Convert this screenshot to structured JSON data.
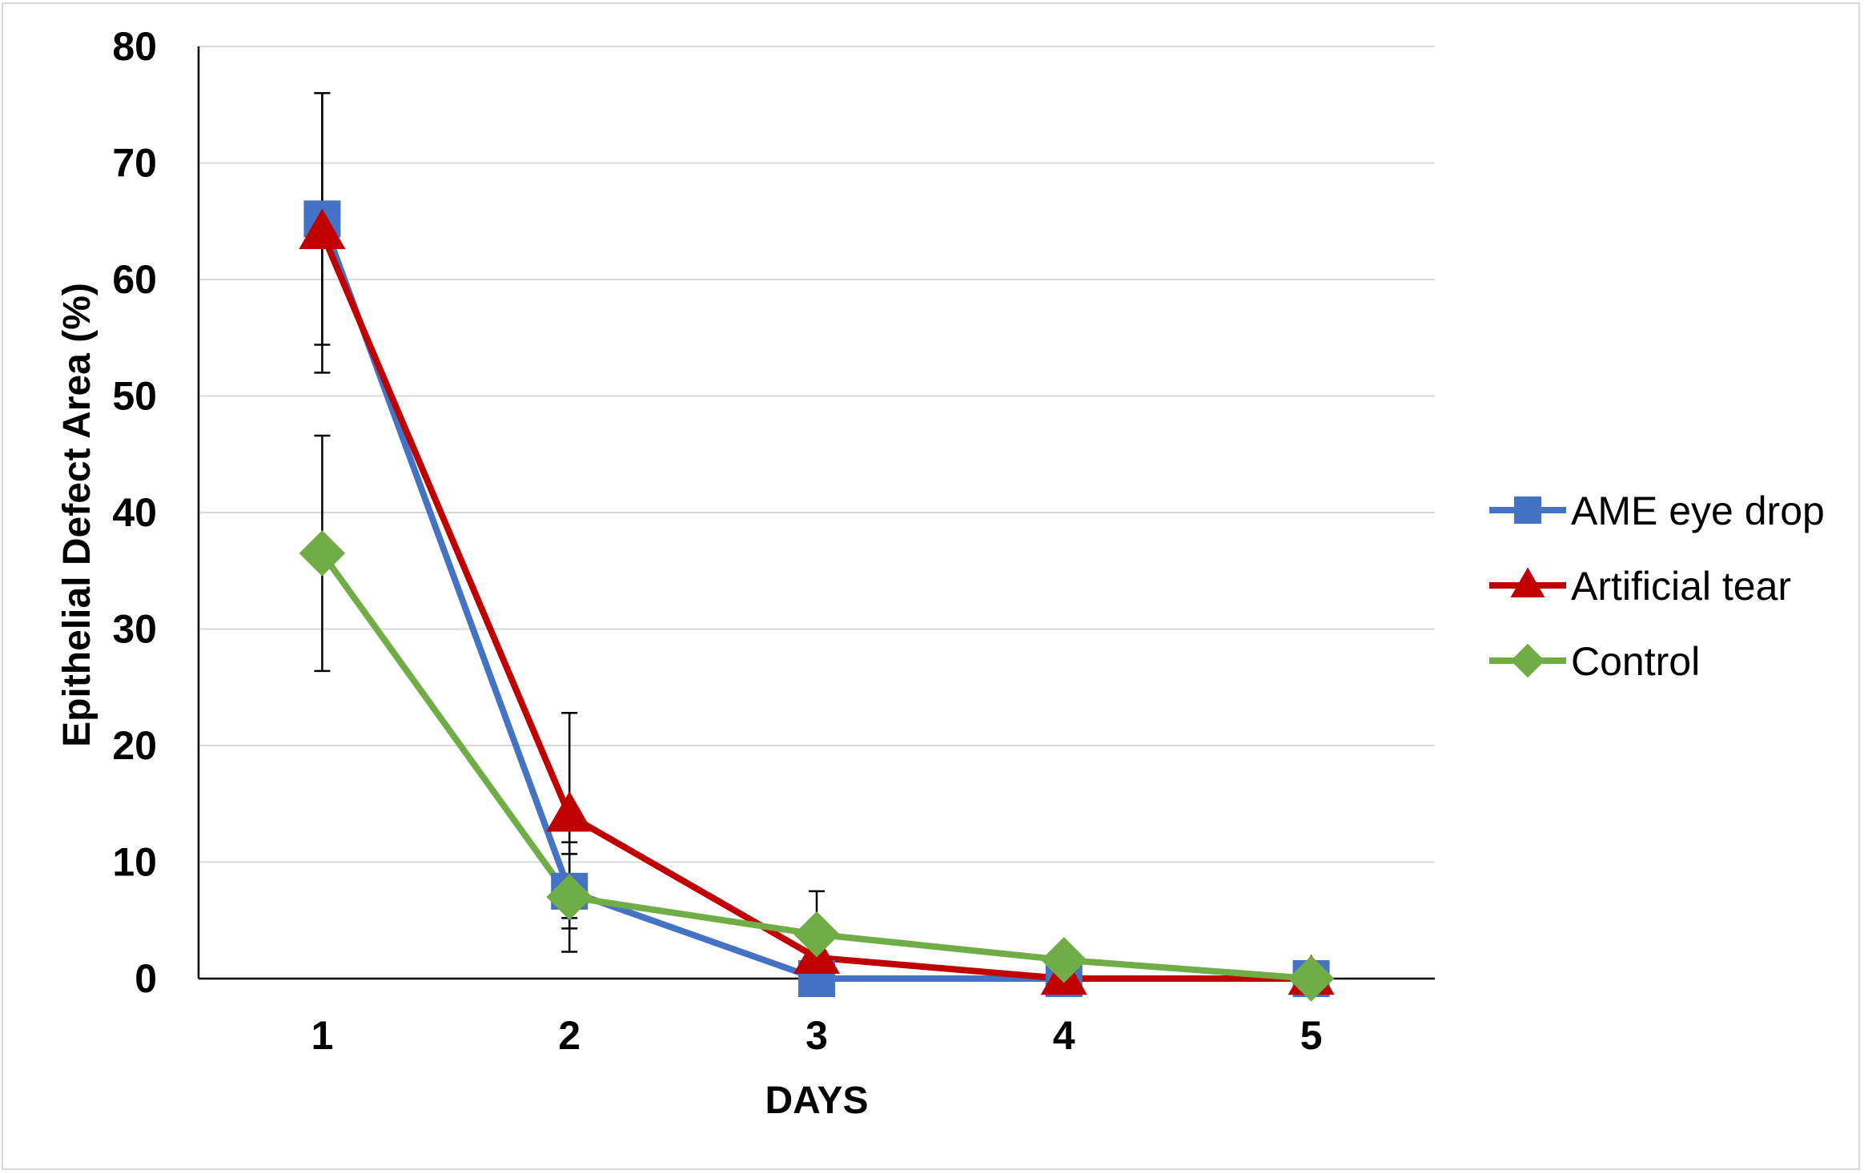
{
  "chart_data": {
    "type": "line",
    "title": "",
    "xlabel": "DAYS",
    "ylabel": "Epithelial Defect Area (%)",
    "categories": [
      "1",
      "2",
      "3",
      "4",
      "5"
    ],
    "ylim": [
      0,
      80
    ],
    "yticks": [
      0,
      10,
      20,
      30,
      40,
      50,
      60,
      70,
      80
    ],
    "grid": true,
    "legend_position": "right",
    "series": [
      {
        "name": "AME eye drop",
        "color": "#4472C4",
        "marker": "square",
        "values": [
          65.2,
          7.5,
          0,
          0,
          0
        ],
        "error": [
          10.8,
          3.2,
          0,
          0,
          0
        ]
      },
      {
        "name": "Artificial tear",
        "color": "#C00000",
        "marker": "triangle",
        "values": [
          64.0,
          14.0,
          1.8,
          0,
          0
        ],
        "error": [
          12.0,
          8.8,
          0,
          0,
          0
        ]
      },
      {
        "name": "Control",
        "color": "#70AD47",
        "marker": "diamond",
        "values": [
          36.5,
          7.0,
          3.8,
          1.6,
          0
        ],
        "error": [
          10.1,
          4.7,
          3.7,
          0,
          0
        ]
      }
    ]
  }
}
